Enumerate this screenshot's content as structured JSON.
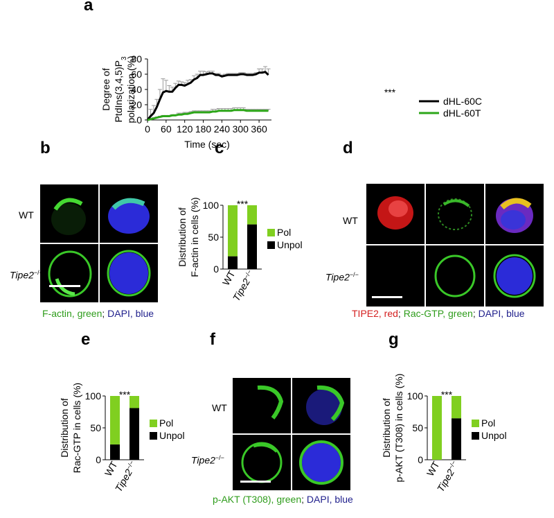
{
  "panels": {
    "a": "a",
    "b": "b",
    "c": "c",
    "d": "d",
    "e": "e",
    "f": "f",
    "g": "g"
  },
  "panel_a": {
    "y_label_1": "Degree of",
    "y_label_2": "PtdIns(3,4,5)P",
    "y_label_2_sub": "3",
    "y_label_3": "polarization (%)",
    "x_label": "Time (sec)",
    "significance": "***",
    "legend": [
      "dHL-60C",
      "dHL-60T"
    ],
    "x_ticks": [
      "0",
      "60",
      "120",
      "180",
      "240",
      "300",
      "360"
    ],
    "y_ticks": [
      "0",
      "20",
      "40",
      "60",
      "80"
    ]
  },
  "chart_data": [
    {
      "type": "line",
      "xlabel": "Time (sec)",
      "ylabel": "Degree of PtdIns(3,4,5)P3 polarization (%)",
      "xlim": [
        0,
        400
      ],
      "ylim": [
        0,
        80
      ],
      "x": [
        0,
        10,
        20,
        30,
        40,
        50,
        60,
        70,
        80,
        90,
        100,
        110,
        120,
        130,
        140,
        150,
        160,
        170,
        180,
        190,
        200,
        210,
        220,
        230,
        240,
        250,
        260,
        270,
        280,
        290,
        300,
        310,
        320,
        330,
        340,
        350,
        360,
        370,
        380,
        390
      ],
      "series": [
        {
          "name": "dHL-60C",
          "color": "#000000",
          "values": [
            0,
            5,
            9,
            17,
            27,
            36,
            38,
            37,
            37,
            42,
            46,
            46,
            45,
            47,
            49,
            53,
            55,
            59,
            59,
            60,
            61,
            61,
            59,
            59,
            57,
            58,
            59,
            59,
            59,
            59,
            60,
            60,
            59,
            59,
            59,
            60,
            62,
            62,
            63,
            59
          ],
          "error": [
            0,
            9,
            10,
            10,
            13,
            18,
            14,
            8,
            6,
            6,
            5,
            4,
            4,
            5,
            4,
            5,
            5,
            5,
            5,
            3,
            3,
            3,
            2,
            2,
            2,
            2,
            2,
            2,
            2,
            2,
            2,
            2,
            2,
            2,
            2,
            2,
            5,
            5,
            7,
            8
          ]
        },
        {
          "name": "dHL-60T",
          "color": "#2ca618",
          "values": [
            0,
            1,
            2,
            3,
            4,
            5,
            5,
            5,
            6,
            6,
            7,
            7,
            8,
            8,
            9,
            10,
            10,
            10,
            10,
            10,
            10,
            11,
            11,
            12,
            12,
            12,
            12,
            12,
            13,
            13,
            13,
            13,
            12,
            12,
            12,
            12,
            12,
            12,
            12,
            12
          ],
          "error": [
            0,
            1,
            1,
            1,
            1,
            1,
            1,
            1,
            1,
            1,
            2,
            2,
            2,
            2,
            2,
            2,
            2,
            2,
            2,
            2,
            2,
            3,
            3,
            3,
            3,
            3,
            3,
            3,
            3,
            3,
            3,
            3,
            2,
            2,
            2,
            2,
            2,
            2,
            2,
            2
          ]
        }
      ]
    },
    {
      "type": "bar",
      "title": "c",
      "ylabel": "Distribution of F-actin in cells (%)",
      "categories": [
        "WT",
        "Tipe2−/−"
      ],
      "ylim": [
        0,
        100
      ],
      "series": [
        {
          "name": "Unpol",
          "color": "#000000",
          "values": [
            20,
            70
          ]
        },
        {
          "name": "Pol",
          "color": "#80cf20",
          "values": [
            80,
            30
          ]
        }
      ],
      "significance": "***"
    },
    {
      "type": "bar",
      "title": "e",
      "ylabel": "Distribution of Rac-GTP in cells (%)",
      "categories": [
        "WT",
        "Tipe2−/−"
      ],
      "ylim": [
        0,
        100
      ],
      "series": [
        {
          "name": "Unpol",
          "color": "#000000",
          "values": [
            24,
            81
          ]
        },
        {
          "name": "Pol",
          "color": "#80cf20",
          "values": [
            76,
            19
          ]
        }
      ],
      "significance": "***"
    },
    {
      "type": "bar",
      "title": "g",
      "ylabel": "Distribution of p-AKT (T308) in cells (%)",
      "categories": [
        "WT",
        "Tipe2−/−"
      ],
      "ylim": [
        0,
        100
      ],
      "series": [
        {
          "name": "Unpol",
          "color": "#000000",
          "values": [
            0,
            65
          ]
        },
        {
          "name": "Pol",
          "color": "#80cf20",
          "values": [
            100,
            35
          ]
        }
      ],
      "significance": "***"
    }
  ],
  "bar_common": {
    "y_ticks": [
      "0",
      "50",
      "100"
    ],
    "cat_wt": "WT",
    "cat_ko": "Tipe2",
    "cat_ko_sup": "−/−",
    "legend_pol": "Pol",
    "legend_unpol": "Unpol",
    "ylabel_c_1": "Distribution of",
    "ylabel_c_2": "F-actin in cells (%)",
    "ylabel_e_1": "Distribution of",
    "ylabel_e_2": "Rac-GTP in cells (%)",
    "ylabel_g_1": "Distribution of",
    "ylabel_g_2": "p-AKT (T308) in cells (%)"
  },
  "micro": {
    "wt": "WT",
    "ko": "Tipe2",
    "ko_sup": "−/−",
    "cap_b": {
      "p1": "F-actin, green",
      "sep": "; ",
      "p2": "DAPI, blue"
    },
    "cap_d": {
      "p1": "TIPE2, red",
      "sep1": "; ",
      "p2": "Rac-GTP, green",
      "sep2": "; ",
      "p3": "DAPI, blue"
    },
    "cap_f": {
      "p1": "p-AKT (T308), green",
      "sep": "; ",
      "p2": "DAPI, blue"
    }
  }
}
